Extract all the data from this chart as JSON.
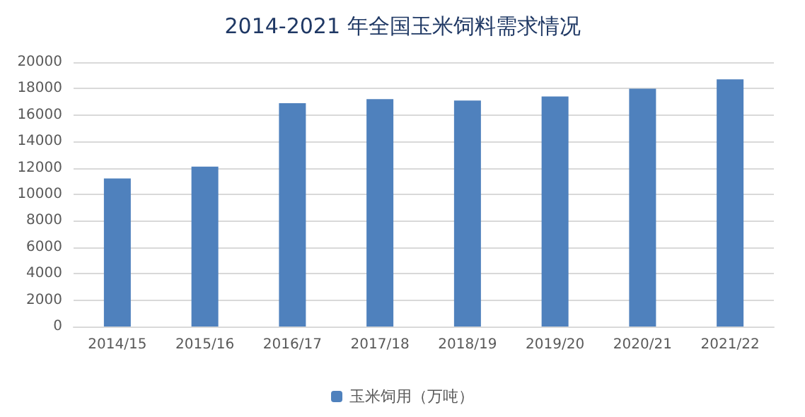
{
  "chart_data": {
    "type": "bar",
    "title": "2014-2021 年全国玉米饲料需求情况",
    "categories": [
      "2014/15",
      "2015/16",
      "2016/17",
      "2017/18",
      "2018/19",
      "2019/20",
      "2020/21",
      "2021/22"
    ],
    "series": [
      {
        "name": "玉米饲用（万吨）",
        "color": "#4f81bd",
        "values": [
          11200,
          12100,
          16900,
          17200,
          17100,
          17400,
          18000,
          18700
        ]
      }
    ],
    "ylim": [
      0,
      20000
    ],
    "yticks": [
      0,
      2000,
      4000,
      6000,
      8000,
      10000,
      12000,
      14000,
      16000,
      18000,
      20000
    ],
    "grid": "y",
    "legend": "bottom"
  }
}
